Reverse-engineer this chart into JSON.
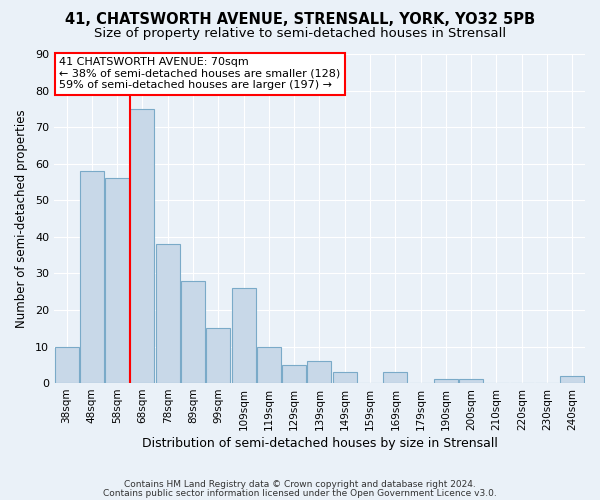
{
  "title": "41, CHATSWORTH AVENUE, STRENSALL, YORK, YO32 5PB",
  "subtitle": "Size of property relative to semi-detached houses in Strensall",
  "xlabel": "Distribution of semi-detached houses by size in Strensall",
  "ylabel": "Number of semi-detached properties",
  "categories": [
    "38sqm",
    "48sqm",
    "58sqm",
    "68sqm",
    "78sqm",
    "89sqm",
    "99sqm",
    "109sqm",
    "119sqm",
    "129sqm",
    "139sqm",
    "149sqm",
    "159sqm",
    "169sqm",
    "179sqm",
    "190sqm",
    "200sqm",
    "210sqm",
    "220sqm",
    "230sqm",
    "240sqm"
  ],
  "values": [
    10,
    58,
    56,
    75,
    38,
    28,
    15,
    26,
    10,
    5,
    6,
    3,
    0,
    3,
    0,
    1,
    1,
    0,
    0,
    0,
    2
  ],
  "bar_color": "#c8d8e8",
  "bar_edge_color": "#7aaac8",
  "red_line_bin_index": 3,
  "annotation_line1": "41 CHATSWORTH AVENUE: 70sqm",
  "annotation_line2": "← 38% of semi-detached houses are smaller (128)",
  "annotation_line3": "59% of semi-detached houses are larger (197) →",
  "footer1": "Contains HM Land Registry data © Crown copyright and database right 2024.",
  "footer2": "Contains public sector information licensed under the Open Government Licence v3.0.",
  "ylim": [
    0,
    90
  ],
  "yticks": [
    0,
    10,
    20,
    30,
    40,
    50,
    60,
    70,
    80,
    90
  ],
  "background_color": "#eaf1f8",
  "plot_background_color": "#eaf1f8",
  "grid_color": "#ffffff",
  "title_fontsize": 10.5,
  "subtitle_fontsize": 9.5,
  "annotation_fontsize": 8.0,
  "xlabel_fontsize": 9,
  "ylabel_fontsize": 8.5
}
